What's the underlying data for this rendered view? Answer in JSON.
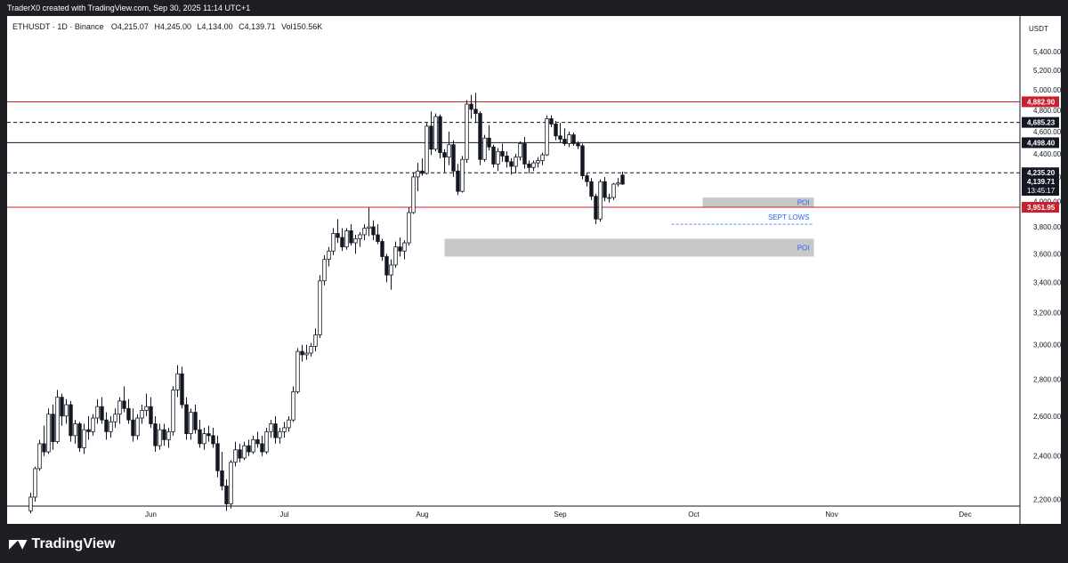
{
  "header": {
    "credit": "TraderX0 created with TradingView.com, Sep 30, 2025 11:14 UTC+1"
  },
  "legend": {
    "symbol": "ETHUSDT · 1D · Binance",
    "open_label": "O",
    "open": "4,215.07",
    "high_label": "H",
    "high": "4,245.00",
    "low_label": "L",
    "low": "4,134.00",
    "close_label": "C",
    "close": "4,139.71",
    "vol_label": "Vol",
    "vol": "150.56K"
  },
  "footer": {
    "brand": "TradingView",
    "logo_icon": "tradingview-logo-icon"
  },
  "colors": {
    "red_line": "#c8202e",
    "dark_line": "#131722",
    "poi_fill": "#c8c8c8",
    "blue_text": "#2962ff"
  },
  "chart_data": {
    "type": "candlestick",
    "currency": "USDT",
    "ylim": [
      2150,
      5550
    ],
    "y_ticks": [
      2200,
      2400,
      2600,
      2800,
      3000,
      3200,
      3400,
      3600,
      3800,
      4000,
      4200,
      4400,
      4600,
      4800,
      5000,
      5200,
      5400
    ],
    "y_tick_labels": [
      "2,200.00",
      "2,400.00",
      "2,600.00",
      "2,800.00",
      "3,000.00",
      "3,200.00",
      "3,400.00",
      "3,600.00",
      "3,800.00",
      "4,000.00",
      "4,200.00",
      "4,400.00",
      "4,600.00",
      "4,800.00",
      "5,000.00",
      "5,200.00",
      "5,400.00"
    ],
    "x_labels": [
      {
        "text": "Jun",
        "day": 27
      },
      {
        "text": "Jul",
        "day": 57
      },
      {
        "text": "Aug",
        "day": 88
      },
      {
        "text": "Sep",
        "day": 119
      },
      {
        "text": "Oct",
        "day": 149
      },
      {
        "text": "Nov",
        "day": 180
      },
      {
        "text": "Dec",
        "day": 210
      }
    ],
    "grid": false,
    "candles": [
      [
        2150,
        2230,
        2140,
        2210
      ],
      [
        2210,
        2350,
        2190,
        2340
      ],
      [
        2340,
        2480,
        2330,
        2460
      ],
      [
        2460,
        2550,
        2400,
        2420
      ],
      [
        2420,
        2640,
        2410,
        2610
      ],
      [
        2610,
        2660,
        2430,
        2470
      ],
      [
        2470,
        2740,
        2460,
        2700
      ],
      [
        2700,
        2720,
        2550,
        2600
      ],
      [
        2600,
        2690,
        2560,
        2660
      ],
      [
        2660,
        2680,
        2470,
        2500
      ],
      [
        2500,
        2580,
        2460,
        2560
      ],
      [
        2560,
        2570,
        2420,
        2440
      ],
      [
        2440,
        2560,
        2410,
        2530
      ],
      [
        2530,
        2600,
        2480,
        2520
      ],
      [
        2520,
        2610,
        2500,
        2590
      ],
      [
        2590,
        2690,
        2560,
        2650
      ],
      [
        2650,
        2700,
        2560,
        2580
      ],
      [
        2580,
        2620,
        2480,
        2520
      ],
      [
        2520,
        2600,
        2490,
        2570
      ],
      [
        2570,
        2640,
        2540,
        2610
      ],
      [
        2610,
        2700,
        2560,
        2680
      ],
      [
        2680,
        2760,
        2620,
        2640
      ],
      [
        2640,
        2690,
        2560,
        2580
      ],
      [
        2580,
        2640,
        2470,
        2500
      ],
      [
        2500,
        2610,
        2480,
        2590
      ],
      [
        2590,
        2660,
        2560,
        2630
      ],
      [
        2630,
        2720,
        2600,
        2650
      ],
      [
        2650,
        2700,
        2540,
        2560
      ],
      [
        2560,
        2600,
        2420,
        2450
      ],
      [
        2450,
        2560,
        2430,
        2530
      ],
      [
        2530,
        2560,
        2450,
        2480
      ],
      [
        2480,
        2540,
        2440,
        2520
      ],
      [
        2520,
        2760,
        2500,
        2740
      ],
      [
        2740,
        2880,
        2700,
        2830
      ],
      [
        2830,
        2870,
        2640,
        2660
      ],
      [
        2660,
        2700,
        2480,
        2510
      ],
      [
        2510,
        2640,
        2480,
        2620
      ],
      [
        2620,
        2660,
        2510,
        2530
      ],
      [
        2530,
        2580,
        2440,
        2460
      ],
      [
        2460,
        2540,
        2430,
        2510
      ],
      [
        2510,
        2550,
        2470,
        2500
      ],
      [
        2500,
        2540,
        2440,
        2460
      ],
      [
        2460,
        2500,
        2300,
        2330
      ],
      [
        2330,
        2420,
        2240,
        2260
      ],
      [
        2260,
        2290,
        2150,
        2180
      ],
      [
        2180,
        2380,
        2160,
        2370
      ],
      [
        2370,
        2470,
        2350,
        2430
      ],
      [
        2430,
        2460,
        2370,
        2390
      ],
      [
        2390,
        2470,
        2380,
        2450
      ],
      [
        2450,
        2480,
        2400,
        2420
      ],
      [
        2420,
        2500,
        2410,
        2480
      ],
      [
        2480,
        2520,
        2440,
        2460
      ],
      [
        2460,
        2500,
        2400,
        2420
      ],
      [
        2420,
        2540,
        2410,
        2520
      ],
      [
        2520,
        2580,
        2490,
        2560
      ],
      [
        2560,
        2600,
        2460,
        2490
      ],
      [
        2490,
        2540,
        2460,
        2520
      ],
      [
        2520,
        2570,
        2490,
        2540
      ],
      [
        2540,
        2600,
        2520,
        2580
      ],
      [
        2580,
        2760,
        2570,
        2730
      ],
      [
        2730,
        2980,
        2720,
        2960
      ],
      [
        2960,
        3000,
        2900,
        2940
      ],
      [
        2940,
        3000,
        2910,
        2950
      ],
      [
        2950,
        3010,
        2930,
        2990
      ],
      [
        2990,
        3100,
        2960,
        3060
      ],
      [
        3060,
        3450,
        3040,
        3410
      ],
      [
        3410,
        3590,
        3380,
        3560
      ],
      [
        3560,
        3650,
        3510,
        3620
      ],
      [
        3620,
        3790,
        3590,
        3750
      ],
      [
        3750,
        3860,
        3680,
        3720
      ],
      [
        3720,
        3790,
        3620,
        3650
      ],
      [
        3650,
        3790,
        3630,
        3770
      ],
      [
        3770,
        3820,
        3660,
        3680
      ],
      [
        3680,
        3740,
        3600,
        3710
      ],
      [
        3710,
        3760,
        3650,
        3740
      ],
      [
        3740,
        3820,
        3700,
        3790
      ],
      [
        3790,
        3950,
        3730,
        3800
      ],
      [
        3800,
        3850,
        3700,
        3740
      ],
      [
        3740,
        3820,
        3670,
        3690
      ],
      [
        3690,
        3710,
        3550,
        3580
      ],
      [
        3580,
        3600,
        3400,
        3450
      ],
      [
        3450,
        3560,
        3350,
        3520
      ],
      [
        3520,
        3690,
        3500,
        3650
      ],
      [
        3650,
        3720,
        3580,
        3620
      ],
      [
        3620,
        3700,
        3560,
        3680
      ],
      [
        3680,
        3950,
        3660,
        3910
      ],
      [
        3910,
        4240,
        3900,
        4200
      ],
      [
        4200,
        4320,
        4080,
        4250
      ],
      [
        4250,
        4360,
        4210,
        4230
      ],
      [
        4230,
        4680,
        4220,
        4650
      ],
      [
        4650,
        4790,
        4390,
        4440
      ],
      [
        4440,
        4770,
        4420,
        4740
      ],
      [
        4740,
        4760,
        4360,
        4410
      ],
      [
        4410,
        4440,
        4240,
        4370
      ],
      [
        4370,
        4600,
        4300,
        4480
      ],
      [
        4480,
        4520,
        4200,
        4250
      ],
      [
        4250,
        4310,
        4050,
        4080
      ],
      [
        4080,
        4380,
        4070,
        4350
      ],
      [
        4350,
        4900,
        4320,
        4860
      ],
      [
        4860,
        4950,
        4720,
        4810
      ],
      [
        4810,
        4970,
        4680,
        4770
      ],
      [
        4770,
        4790,
        4300,
        4350
      ],
      [
        4350,
        4570,
        4330,
        4540
      ],
      [
        4540,
        4660,
        4430,
        4460
      ],
      [
        4460,
        4480,
        4280,
        4310
      ],
      [
        4310,
        4450,
        4250,
        4420
      ],
      [
        4420,
        4490,
        4330,
        4380
      ],
      [
        4380,
        4420,
        4280,
        4330
      ],
      [
        4330,
        4360,
        4220,
        4290
      ],
      [
        4290,
        4400,
        4230,
        4370
      ],
      [
        4370,
        4510,
        4340,
        4490
      ],
      [
        4490,
        4550,
        4270,
        4310
      ],
      [
        4310,
        4340,
        4230,
        4280
      ],
      [
        4280,
        4340,
        4250,
        4320
      ],
      [
        4320,
        4370,
        4280,
        4340
      ],
      [
        4340,
        4410,
        4300,
        4390
      ],
      [
        4390,
        4750,
        4380,
        4720
      ],
      [
        4720,
        4750,
        4640,
        4670
      ],
      [
        4670,
        4700,
        4520,
        4560
      ],
      [
        4560,
        4680,
        4500,
        4530
      ],
      [
        4530,
        4630,
        4470,
        4490
      ],
      [
        4490,
        4600,
        4460,
        4570
      ],
      [
        4570,
        4590,
        4470,
        4490
      ],
      [
        4490,
        4510,
        4440,
        4470
      ],
      [
        4470,
        4490,
        4180,
        4210
      ],
      [
        4210,
        4230,
        4120,
        4160
      ],
      [
        4160,
        4190,
        4010,
        4040
      ],
      [
        4040,
        4060,
        3820,
        3860
      ],
      [
        3860,
        4180,
        3840,
        4160
      ],
      [
        4160,
        4200,
        4000,
        4030
      ],
      [
        4030,
        4060,
        3990,
        4030
      ],
      [
        4030,
        4150,
        4010,
        4140
      ],
      [
        4140,
        4190,
        4120,
        4150
      ],
      [
        4215,
        4245,
        4134,
        4139.71
      ]
    ],
    "horizontal_levels": [
      {
        "price": 4882.9,
        "label": "4,882.90",
        "style": "solid",
        "color": "#c8202e"
      },
      {
        "price": 4685.23,
        "label": "4,685.23",
        "style": "dashed",
        "color": "#131722"
      },
      {
        "price": 4498.4,
        "label": "4,498.40",
        "style": "solid",
        "color": "#131722"
      },
      {
        "price": 4235.2,
        "label": "4,235.20",
        "style": "dashed",
        "color": "#131722"
      },
      {
        "price": 3951.95,
        "label": "3,951.95",
        "style": "solid",
        "color": "#c8202e"
      }
    ],
    "zones": [
      {
        "label": "POI",
        "price_top": 4030,
        "price_bottom": 3955,
        "start_day": 151,
        "end_day": 176
      },
      {
        "label": "POI",
        "price_top": 3710,
        "price_bottom": 3580,
        "start_day": 93,
        "end_day": 176
      }
    ],
    "sept_lows": {
      "label": "SEPT LOWS",
      "price": 3820,
      "start_day": 144,
      "end_day": 176
    },
    "current_price": {
      "label": "4,139.71",
      "countdown": "13:45:17"
    }
  }
}
